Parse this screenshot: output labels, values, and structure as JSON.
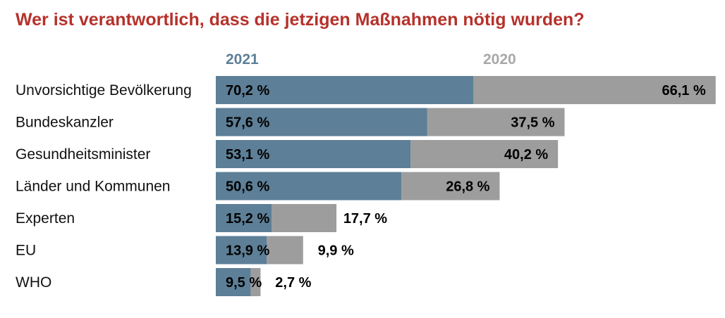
{
  "title": "Wer ist verantwortlich, dass die jetzigen Maßnahmen nötig wurden?",
  "colors": {
    "title": "#b5322b",
    "series_2021": "#5d7f97",
    "series_2020": "#9d9d9d",
    "legend_2021": "#5d7f97",
    "legend_2020": "#a8a8a8"
  },
  "chart_data": {
    "type": "bar",
    "orientation": "horizontal",
    "categories": [
      "Unvorsichtige Bevölkerung",
      "Bundeskanzler",
      "Gesundheitsminister",
      "Länder und Kommunen",
      "Experten",
      "EU",
      "WHO"
    ],
    "series": [
      {
        "name": "2021",
        "values": [
          70.2,
          57.6,
          53.1,
          50.6,
          15.2,
          13.9,
          9.5
        ],
        "labels": [
          "70,2 %",
          "57,6 %",
          "53,1 %",
          "50,6 %",
          "15,2 %",
          "13,9 %",
          "9,5 %"
        ]
      },
      {
        "name": "2020",
        "values": [
          66.1,
          37.5,
          40.2,
          26.8,
          17.7,
          9.9,
          2.7
        ],
        "labels": [
          "66,1 %",
          "37,5 %",
          "40,2 %",
          "26,8 %",
          "17,7 %",
          "9,9 %",
          "2,7 %"
        ]
      }
    ],
    "stacking": "2020 bar extends beyond the 2021 bar",
    "legend_position": "top",
    "grid": false,
    "xlim": [
      0,
      140
    ]
  }
}
